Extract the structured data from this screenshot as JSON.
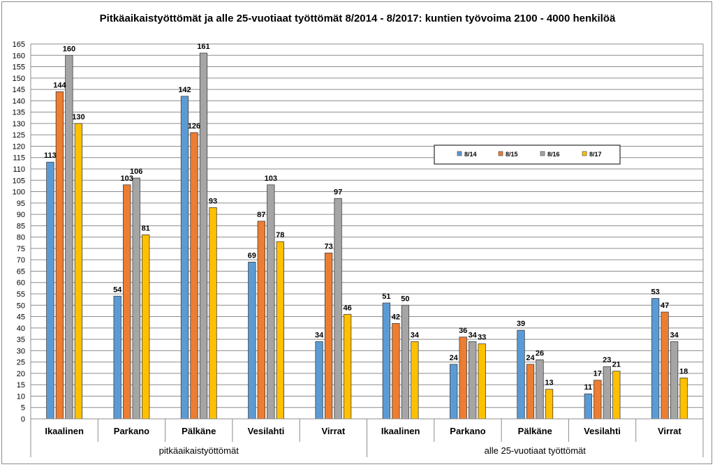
{
  "chart_data": {
    "type": "bar",
    "title": "Pitkäaikaistyöttömät ja alle 25-vuotiaat työttömät 8/2014 - 8/2017: kuntien työvoima 2100 - 4000 henkilöä",
    "xlabel": "",
    "ylabel": "",
    "ylim": [
      0,
      165
    ],
    "ytick_step": 5,
    "grid": true,
    "legend_position": "right-middle",
    "groups": [
      {
        "label": "pitkäaikaistyöttömät",
        "span": 5
      },
      {
        "label": "alle 25-vuotiaat työttömät",
        "span": 5
      }
    ],
    "categories": [
      "Ikaalinen",
      "Parkano",
      "Pälkäne",
      "Vesilahti",
      "Virrat",
      "Ikaalinen",
      "Parkano",
      "Pälkäne",
      "Vesilahti",
      "Virrat"
    ],
    "series": [
      {
        "name": "8/14",
        "color": "#5b9bd5",
        "values": [
          113,
          54,
          142,
          69,
          34,
          51,
          24,
          39,
          11,
          53
        ]
      },
      {
        "name": "8/15",
        "color": "#ed7d31",
        "values": [
          144,
          103,
          126,
          87,
          73,
          42,
          36,
          24,
          17,
          47
        ]
      },
      {
        "name": "8/16",
        "color": "#a5a5a5",
        "values": [
          160,
          106,
          161,
          103,
          97,
          50,
          34,
          26,
          23,
          34
        ]
      },
      {
        "name": "8/17",
        "color": "#ffc000",
        "values": [
          130,
          81,
          93,
          78,
          46,
          34,
          33,
          13,
          21,
          18
        ]
      }
    ]
  }
}
